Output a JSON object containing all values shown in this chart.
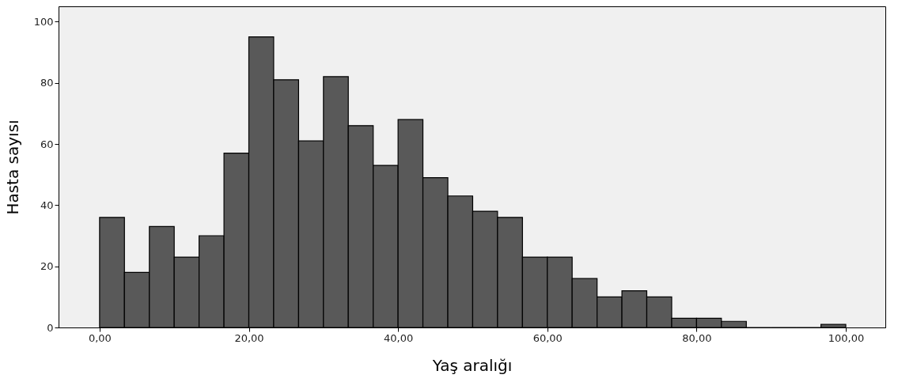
{
  "chart_data": {
    "type": "histogram",
    "xlabel": "Yaş aralığı",
    "ylabel": "Hasta sayısı",
    "color": "#595959",
    "bins": [
      0,
      3.33,
      6.67,
      10,
      13.33,
      16.67,
      20,
      23.33,
      26.67,
      30,
      33.33,
      36.67,
      40,
      43.33,
      46.67,
      50,
      53.33,
      56.67,
      60,
      63.33,
      66.67,
      70,
      73.33,
      76.67,
      80,
      83.33,
      86.67,
      90,
      93.33,
      96.67,
      100
    ],
    "values": [
      36,
      18,
      33,
      23,
      30,
      57,
      95,
      81,
      61,
      82,
      66,
      53,
      68,
      49,
      43,
      38,
      36,
      23,
      23,
      16,
      10,
      12,
      10,
      3,
      3,
      2,
      0,
      0,
      0,
      1
    ],
    "xlim": [
      -5.5,
      105.3
    ],
    "ylim": [
      0,
      105
    ],
    "xticks": [
      {
        "value": 0,
        "label": "0,00"
      },
      {
        "value": 20,
        "label": "20,00"
      },
      {
        "value": 40,
        "label": "40,00"
      },
      {
        "value": 60,
        "label": "60,00"
      },
      {
        "value": 80,
        "label": "80,00"
      },
      {
        "value": 100,
        "label": "100,00"
      }
    ],
    "yticks": [
      0,
      20,
      40,
      60,
      80,
      100
    ],
    "grid": false
  }
}
